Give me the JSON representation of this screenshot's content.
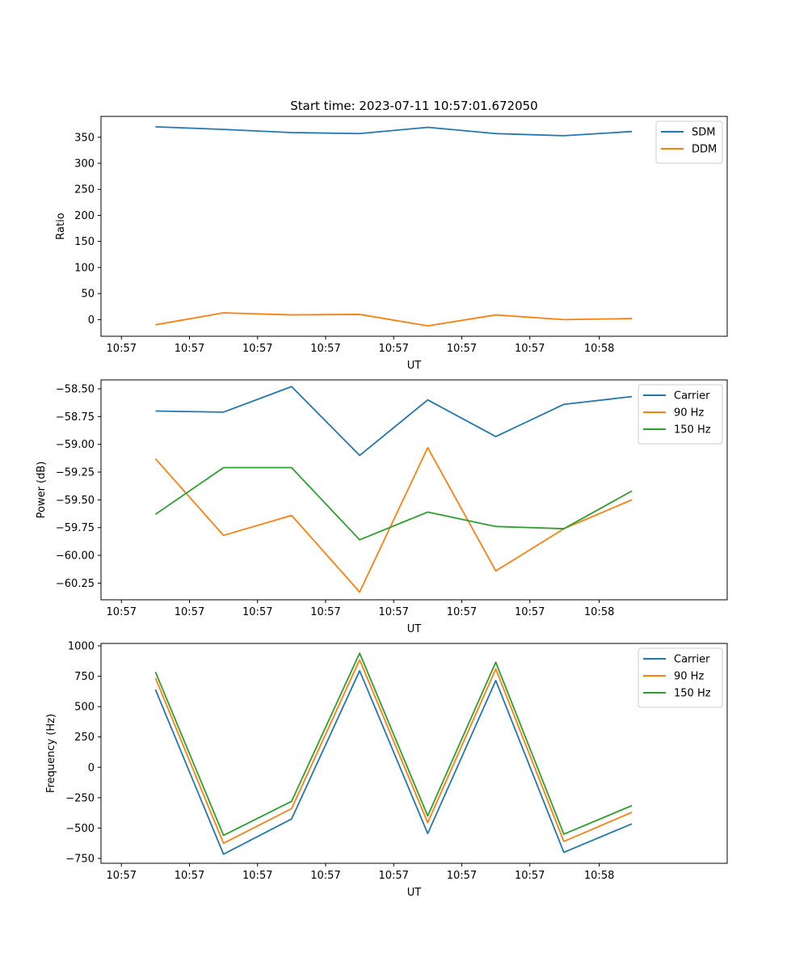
{
  "figure_title": "Start time: 2023-07-11 10:57:01.672050",
  "colors": {
    "blue": "#1f77b4",
    "orange": "#ff7f0e",
    "green": "#2ca02c"
  },
  "chart_data": [
    {
      "type": "line",
      "ylabel": "Ratio",
      "xlabel": "UT",
      "x_tick_labels": [
        "10:57",
        "10:57",
        "10:57",
        "10:57",
        "10:57",
        "10:57",
        "10:57",
        "10:58"
      ],
      "x": [
        0.8,
        1.8,
        2.8,
        3.8,
        4.8,
        5.8,
        6.8,
        7.8
      ],
      "xlim": [
        0,
        9.2
      ],
      "ylim": [
        -32,
        390
      ],
      "yticks": [
        0,
        50,
        100,
        150,
        200,
        250,
        300,
        350
      ],
      "legend_position": "top-right",
      "series": [
        {
          "name": "SDM",
          "color": "#1f77b4",
          "values": [
            370,
            365,
            359,
            357,
            369,
            357,
            353,
            361
          ]
        },
        {
          "name": "DDM",
          "color": "#ff7f0e",
          "values": [
            -10,
            13,
            9,
            10,
            -12,
            9,
            0,
            2
          ]
        }
      ]
    },
    {
      "type": "line",
      "ylabel": "Power (dB)",
      "xlabel": "UT",
      "x_tick_labels": [
        "10:57",
        "10:57",
        "10:57",
        "10:57",
        "10:57",
        "10:57",
        "10:57",
        "10:58"
      ],
      "x": [
        0.8,
        1.8,
        2.8,
        3.8,
        4.8,
        5.8,
        6.8,
        7.8
      ],
      "xlim": [
        0,
        9.2
      ],
      "ylim": [
        -60.4,
        -58.42
      ],
      "yticks": [
        -60.25,
        -60.0,
        -59.75,
        -59.5,
        -59.25,
        -59.0,
        -58.75,
        -58.5
      ],
      "ytick_labels": [
        "−60.25",
        "−60.00",
        "−59.75",
        "−59.50",
        "−59.25",
        "−59.00",
        "−58.75",
        "−58.50"
      ],
      "legend_position": "top-right",
      "series": [
        {
          "name": "Carrier",
          "color": "#1f77b4",
          "values": [
            -58.7,
            -58.71,
            -58.48,
            -59.1,
            -58.6,
            -58.93,
            -58.64,
            -58.57
          ]
        },
        {
          "name": "90 Hz",
          "color": "#ff7f0e",
          "values": [
            -59.13,
            -59.82,
            -59.64,
            -60.33,
            -59.03,
            -60.14,
            -59.76,
            -59.5
          ]
        },
        {
          "name": "150 Hz",
          "color": "#2ca02c",
          "values": [
            -59.63,
            -59.21,
            -59.21,
            -59.86,
            -59.61,
            -59.74,
            -59.76,
            -59.42
          ]
        }
      ]
    },
    {
      "type": "line",
      "ylabel": "Frequency (Hz)",
      "xlabel": "UT",
      "x_tick_labels": [
        "10:57",
        "10:57",
        "10:57",
        "10:57",
        "10:57",
        "10:57",
        "10:57",
        "10:58"
      ],
      "x": [
        0.8,
        1.8,
        2.8,
        3.8,
        4.8,
        5.8,
        6.8,
        7.8
      ],
      "xlim": [
        0,
        9.2
      ],
      "ylim": [
        -790,
        1020
      ],
      "yticks": [
        -750,
        -500,
        -250,
        0,
        250,
        500,
        750,
        1000
      ],
      "ytick_labels": [
        "−750",
        "−500",
        "−250",
        "0",
        "250",
        "500",
        "750",
        "1000"
      ],
      "legend_position": "top-right",
      "series": [
        {
          "name": "Carrier",
          "color": "#1f77b4",
          "values": [
            640,
            -715,
            -425,
            795,
            -545,
            715,
            -700,
            -465
          ]
        },
        {
          "name": "90 Hz",
          "color": "#ff7f0e",
          "values": [
            735,
            -625,
            -340,
            885,
            -455,
            810,
            -610,
            -370
          ]
        },
        {
          "name": "150 Hz",
          "color": "#2ca02c",
          "values": [
            785,
            -560,
            -280,
            940,
            -400,
            865,
            -550,
            -315
          ]
        }
      ]
    }
  ]
}
